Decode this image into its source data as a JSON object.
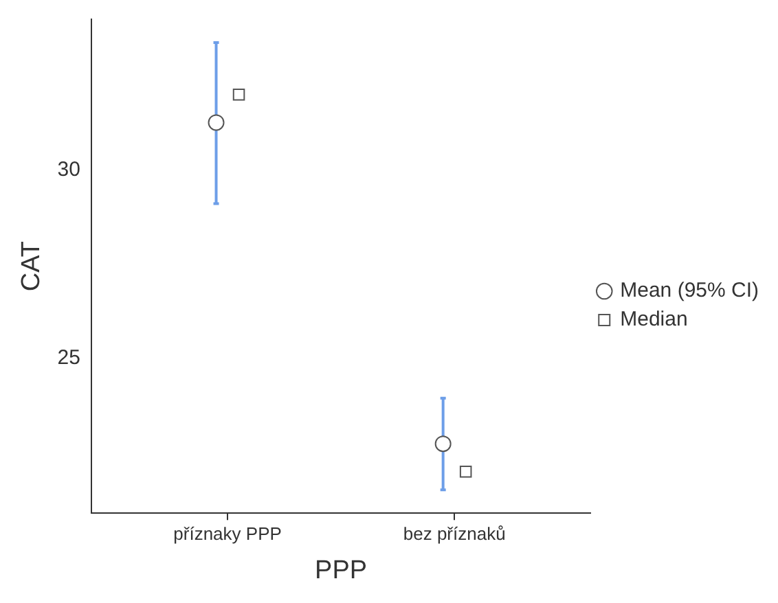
{
  "chart_data": {
    "type": "scatter",
    "xlabel": "PPP",
    "ylabel": "CAT",
    "categories": [
      "příznaky PPP",
      "bez příznaků"
    ],
    "series": [
      {
        "name": "Mean (95% CI)",
        "marker": "circle",
        "color": "#555555",
        "values": [
          31.26,
          22.74
        ],
        "errors": [
          [
            29.11,
            33.38
          ],
          [
            21.52,
            23.95
          ]
        ]
      },
      {
        "name": "Median",
        "marker": "square",
        "color": "#555555",
        "values": [
          32,
          22
        ]
      }
    ],
    "ylim": [
      20.9,
      34
    ],
    "yticks": [
      25,
      30
    ],
    "grid": false,
    "legend": "right"
  }
}
